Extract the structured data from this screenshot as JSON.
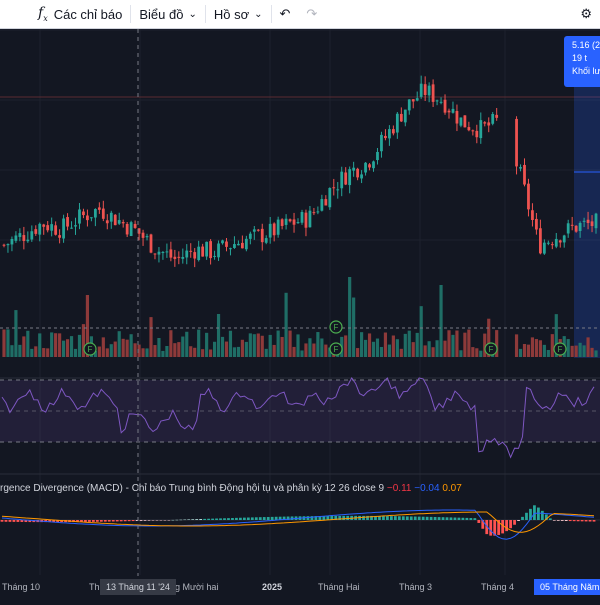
{
  "toolbar": {
    "fx_icon": "function-icon",
    "indicators_label": "Các chỉ báo",
    "chart_label": "Biểu đồ",
    "templates_label": "Hồ sơ",
    "undo_icon": "undo-icon",
    "redo_icon": "redo-icon"
  },
  "crosshair_tooltip": {
    "line1": "5.16 (2",
    "line2": "19 t",
    "line3": "Khối lư"
  },
  "macd_legend": {
    "title": "rgence Divergence (MACD) - Chỉ báo Trung bình Động hội tụ và phân kỳ 12 26 close 9",
    "hist": "−0.11",
    "macd": "−0.04",
    "signal": "0.07"
  },
  "x_axis": [
    {
      "label": "Tháng 10",
      "style": "normal"
    },
    {
      "label": "Th",
      "style": "normal"
    },
    {
      "label": "13 Tháng 11 '24",
      "style": "cross"
    },
    {
      "label": "g Mười hai",
      "style": "normal"
    },
    {
      "label": "2025",
      "style": "bold"
    },
    {
      "label": "Tháng Hai",
      "style": "normal"
    },
    {
      "label": "Tháng 3",
      "style": "normal"
    },
    {
      "label": "Tháng 4",
      "style": "normal"
    },
    {
      "label": "05 Tháng Năm",
      "style": "hl"
    }
  ],
  "colors": {
    "background": "#131722",
    "up": "#26a69a",
    "down": "#ef5350",
    "rsi_line": "#7e57c2",
    "macd_line": "#2962ff",
    "signal_line": "#ff9800",
    "crosshair_label": "#2962ff"
  },
  "event_markers": [
    "F",
    "F",
    "F",
    "F",
    "F"
  ],
  "chart_data": {
    "type": "candlestick",
    "price_series_approx": [
      5.55,
      5.62,
      5.7,
      5.66,
      5.74,
      5.8,
      5.72,
      5.64,
      5.52,
      5.45,
      5.52,
      5.5,
      5.56,
      5.6,
      5.64,
      5.7,
      5.74,
      5.92,
      6.05,
      6.12,
      6.3,
      6.5,
      6.62,
      6.55,
      6.4,
      6.35,
      6.42,
      6.05,
      5.55,
      5.62,
      5.68,
      5.7
    ],
    "indicators": [
      "Volume",
      "RSI",
      "MACD 12 26 close 9"
    ],
    "macd": {
      "histogram": -0.11,
      "macd": -0.04,
      "signal": 0.07
    }
  }
}
